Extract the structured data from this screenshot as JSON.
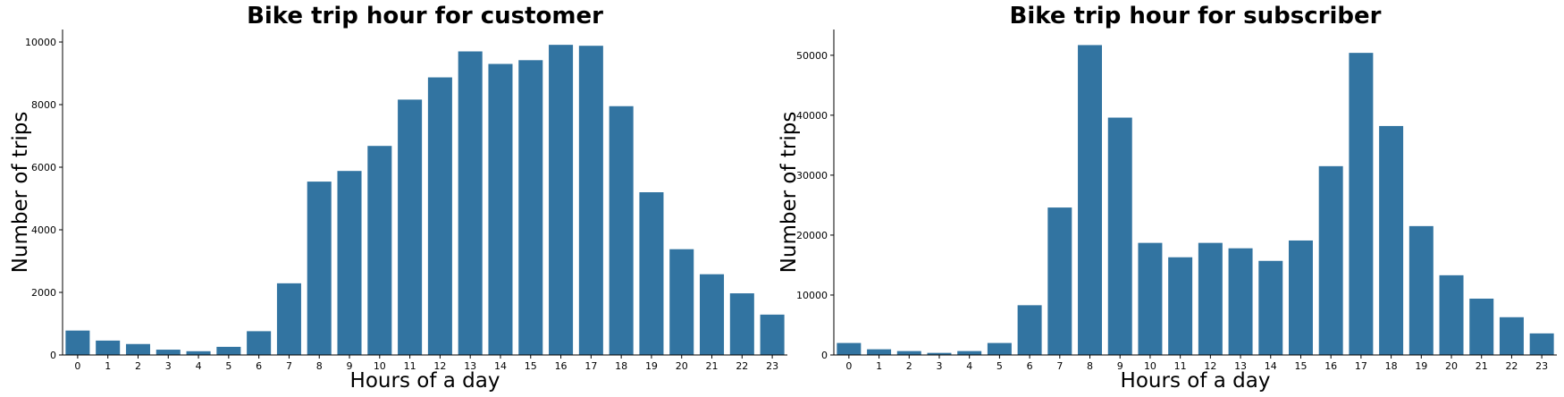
{
  "chart_data": [
    {
      "type": "bar",
      "title": "Bike trip hour for customer",
      "xlabel": "Hours of a day",
      "ylabel": "Number of trips",
      "categories": [
        "0",
        "1",
        "2",
        "3",
        "4",
        "5",
        "6",
        "7",
        "8",
        "9",
        "10",
        "11",
        "12",
        "13",
        "14",
        "15",
        "16",
        "17",
        "18",
        "19",
        "20",
        "21",
        "22",
        "23"
      ],
      "values": [
        780,
        460,
        350,
        170,
        120,
        260,
        760,
        2290,
        5540,
        5880,
        6680,
        8160,
        8870,
        9700,
        9300,
        9420,
        9910,
        9880,
        7950,
        5200,
        3380,
        2580,
        1970,
        1290
      ],
      "ylim": [
        0,
        10400
      ],
      "yticks": [
        0,
        2000,
        4000,
        6000,
        8000,
        10000
      ],
      "grid": false,
      "color": "#3274a1"
    },
    {
      "type": "bar",
      "title": "Bike trip hour for subscriber",
      "xlabel": "Hours of a day",
      "ylabel": "Number of trips",
      "categories": [
        "0",
        "1",
        "2",
        "3",
        "4",
        "5",
        "6",
        "7",
        "8",
        "9",
        "10",
        "11",
        "12",
        "13",
        "14",
        "15",
        "16",
        "17",
        "18",
        "19",
        "20",
        "21",
        "22",
        "23"
      ],
      "values": [
        2000,
        950,
        650,
        350,
        650,
        2000,
        8300,
        24600,
        51700,
        39600,
        18700,
        16300,
        18700,
        17800,
        15700,
        19100,
        31500,
        50400,
        38200,
        21500,
        13300,
        9400,
        6300,
        3600
      ],
      "ylim": [
        0,
        54300
      ],
      "yticks": [
        0,
        10000,
        20000,
        30000,
        40000,
        50000
      ],
      "grid": false,
      "color": "#3274a1"
    }
  ]
}
